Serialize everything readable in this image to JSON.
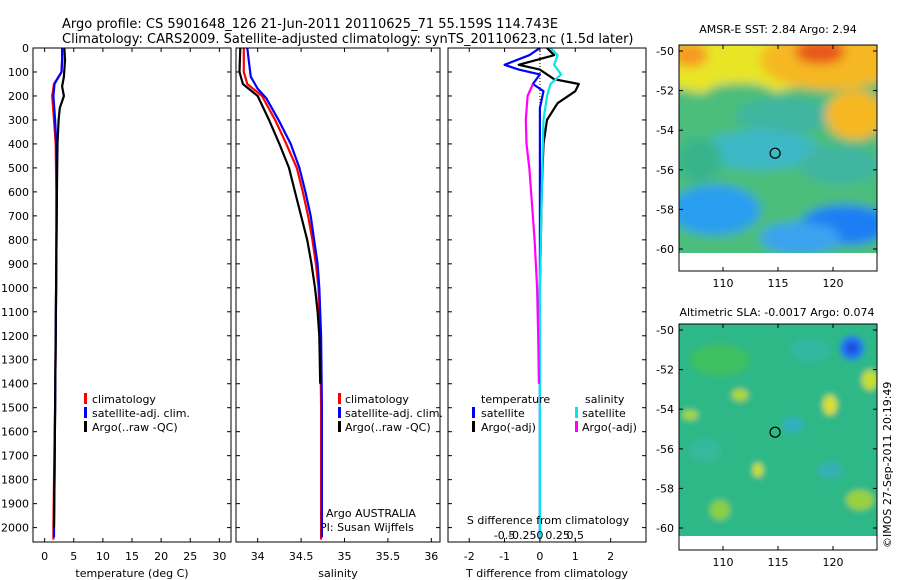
{
  "header": {
    "line1": "Argo profile: CS 5901648_126 21-Jun-2011 20110625_71 55.159S 114.743E",
    "line2": "Climatology: CARS2009. Satellite-adjusted climatology: synTS_20110623.nc (1.5d later)"
  },
  "credit": "©IMOS 27-Sep-2011 20:19:49",
  "colors": {
    "climatology": "#ff0000",
    "satellite": "#0000ff",
    "argo": "#000000",
    "salinity_satellite": "#00e5ee",
    "salinity_argo": "#ff00ff"
  },
  "chart_data": [
    {
      "type": "line",
      "id": "temperature",
      "xlabel": "temperature (deg C)",
      "xlim": [
        -2,
        32
      ],
      "ylim": [
        2060,
        0
      ],
      "xticks": [
        "0",
        "5",
        "10",
        "15",
        "20",
        "25",
        "30"
      ],
      "xtick_values": [
        0,
        5,
        10,
        15,
        20,
        25,
        30
      ],
      "yticks": [
        "0",
        "100",
        "200",
        "300",
        "400",
        "500",
        "600",
        "700",
        "800",
        "900",
        "1000",
        "1100",
        "1200",
        "1300",
        "1400",
        "1500",
        "1600",
        "1700",
        "1800",
        "1900",
        "2000"
      ],
      "ytick_values": [
        0,
        100,
        200,
        300,
        400,
        500,
        600,
        700,
        800,
        900,
        1000,
        1100,
        1200,
        1300,
        1400,
        1500,
        1600,
        1700,
        1800,
        1900,
        2000
      ],
      "legend": {
        "placement": "lower-center",
        "items": [
          "climatology",
          "satellite-adj. clim.",
          "Argo(..raw -QC)"
        ]
      },
      "series": [
        {
          "name": "climatology",
          "color": "#ff0000",
          "points": [
            [
              3.0,
              0
            ],
            [
              3.0,
              50
            ],
            [
              2.9,
              100
            ],
            [
              1.6,
              150
            ],
            [
              1.3,
              200
            ],
            [
              1.6,
              300
            ],
            [
              1.9,
              400
            ],
            [
              2.0,
              600
            ],
            [
              2.0,
              900
            ],
            [
              1.9,
              1200
            ],
            [
              1.8,
              1500
            ],
            [
              1.6,
              1800
            ],
            [
              1.5,
              2000
            ],
            [
              1.5,
              2050
            ]
          ]
        },
        {
          "name": "satellite-adj. clim.",
          "color": "#0000ff",
          "points": [
            [
              3.0,
              0
            ],
            [
              3.0,
              50
            ],
            [
              2.9,
              100
            ],
            [
              1.7,
              150
            ],
            [
              1.5,
              200
            ],
            [
              1.8,
              300
            ],
            [
              2.0,
              400
            ],
            [
              2.1,
              600
            ],
            [
              2.0,
              900
            ],
            [
              1.9,
              1200
            ],
            [
              1.8,
              1500
            ],
            [
              1.7,
              1800
            ],
            [
              1.6,
              2000
            ],
            [
              1.6,
              2040
            ]
          ]
        },
        {
          "name": "Argo(..raw -QC)",
          "color": "#000000",
          "points": [
            [
              3.4,
              0
            ],
            [
              3.5,
              50
            ],
            [
              3.3,
              120
            ],
            [
              3.0,
              160
            ],
            [
              3.3,
              200
            ],
            [
              2.6,
              250
            ],
            [
              2.4,
              300
            ],
            [
              2.2,
              400
            ],
            [
              2.1,
              600
            ],
            [
              2.0,
              900
            ],
            [
              1.9,
              1200
            ],
            [
              1.8,
              1500
            ],
            [
              1.7,
              1800
            ],
            [
              1.6,
              2000
            ]
          ]
        }
      ]
    },
    {
      "type": "line",
      "id": "salinity",
      "xlabel": "salinity",
      "xlim": [
        33.75,
        36.1
      ],
      "ylim": [
        2060,
        0
      ],
      "xticks": [
        "34",
        "34.5",
        "35",
        "35.5",
        "36"
      ],
      "xtick_values": [
        34,
        34.5,
        35,
        35.5,
        36
      ],
      "legend": {
        "placement": "lower-center",
        "items": [
          "climatology",
          "satellite-adj. clim.",
          "Argo(..raw -QC)"
        ]
      },
      "annotation": [
        "Argo AUSTRALIA",
        "PI: Susan Wijffels"
      ],
      "series": [
        {
          "name": "climatology",
          "color": "#ff0000",
          "points": [
            [
              33.84,
              0
            ],
            [
              33.84,
              100
            ],
            [
              33.88,
              150
            ],
            [
              34.05,
              200
            ],
            [
              34.2,
              300
            ],
            [
              34.33,
              400
            ],
            [
              34.45,
              500
            ],
            [
              34.52,
              600
            ],
            [
              34.58,
              700
            ],
            [
              34.63,
              800
            ],
            [
              34.67,
              900
            ],
            [
              34.7,
              1000
            ],
            [
              34.72,
              1200
            ],
            [
              34.73,
              1500
            ],
            [
              34.73,
              1800
            ],
            [
              34.73,
              2000
            ],
            [
              34.73,
              2050
            ]
          ]
        },
        {
          "name": "satellite-adj. clim.",
          "color": "#0000ff",
          "points": [
            [
              33.88,
              0
            ],
            [
              33.9,
              60
            ],
            [
              33.92,
              120
            ],
            [
              34.0,
              170
            ],
            [
              34.1,
              210
            ],
            [
              34.24,
              300
            ],
            [
              34.38,
              400
            ],
            [
              34.48,
              500
            ],
            [
              34.55,
              600
            ],
            [
              34.61,
              700
            ],
            [
              34.65,
              800
            ],
            [
              34.69,
              900
            ],
            [
              34.71,
              1000
            ],
            [
              34.73,
              1200
            ],
            [
              34.74,
              1500
            ],
            [
              34.74,
              1800
            ],
            [
              34.74,
              2000
            ],
            [
              34.74,
              2040
            ]
          ]
        },
        {
          "name": "Argo(..raw -QC)",
          "color": "#000000",
          "points": [
            [
              33.8,
              0
            ],
            [
              33.79,
              100
            ],
            [
              33.83,
              150
            ],
            [
              34.0,
              200
            ],
            [
              34.13,
              300
            ],
            [
              34.25,
              400
            ],
            [
              34.36,
              500
            ],
            [
              34.43,
              600
            ],
            [
              34.5,
              700
            ],
            [
              34.57,
              800
            ],
            [
              34.62,
              900
            ],
            [
              34.66,
              1000
            ],
            [
              34.69,
              1100
            ],
            [
              34.71,
              1200
            ],
            [
              34.72,
              1400
            ]
          ]
        }
      ]
    },
    {
      "type": "line",
      "id": "difference",
      "xlabel": "T difference from climatology",
      "xlabel2": "S difference from climatology",
      "xlim": [
        -2.6,
        3.0
      ],
      "ylim": [
        2060,
        0
      ],
      "xticks": [
        "-2",
        "-1",
        "0",
        "1",
        "2"
      ],
      "xtick_values": [
        -2,
        -1,
        0,
        1,
        2
      ],
      "sticks": [
        "-0.5",
        "-0.25",
        "0",
        "0.25",
        "0.5"
      ],
      "stick_values": [
        -0.5,
        -0.25,
        0,
        0.25,
        0.5
      ],
      "legend": {
        "placement": "lower-center",
        "temperature_header": "temperature",
        "salinity_header": "salinity",
        "items": [
          "satellite",
          "Argo(-adj)",
          "satellite",
          "Argo(-adj)"
        ]
      },
      "series": [
        {
          "name": "satellite",
          "group": "temperature",
          "color": "#0000ff",
          "points": [
            [
              0.0,
              0
            ],
            [
              -0.3,
              30
            ],
            [
              -1.0,
              70
            ],
            [
              -0.6,
              90
            ],
            [
              0.0,
              110
            ],
            [
              -0.2,
              150
            ],
            [
              0.1,
              180
            ],
            [
              0.0,
              250
            ],
            [
              0.0,
              600
            ],
            [
              0.0,
              1000
            ],
            [
              0.0,
              1500
            ],
            [
              0.0,
              2000
            ],
            [
              0.0,
              2040
            ]
          ]
        },
        {
          "name": "Argo(-adj)",
          "group": "temperature",
          "color": "#000000",
          "points": [
            [
              0.2,
              0
            ],
            [
              0.4,
              30
            ],
            [
              -0.6,
              70
            ],
            [
              0.0,
              90
            ],
            [
              0.4,
              130
            ],
            [
              1.1,
              150
            ],
            [
              1.0,
              180
            ],
            [
              0.5,
              230
            ],
            [
              0.2,
              300
            ],
            [
              0.1,
              400
            ],
            [
              0.05,
              600
            ],
            [
              0.0,
              1000
            ],
            [
              0.0,
              1400
            ]
          ]
        },
        {
          "name": "satellite",
          "group": "salinity",
          "color": "#00e5ee",
          "points": [
            [
              0.3,
              0
            ],
            [
              0.5,
              30
            ],
            [
              0.4,
              70
            ],
            [
              0.6,
              110
            ],
            [
              0.3,
              150
            ],
            [
              0.2,
              200
            ],
            [
              0.1,
              300
            ],
            [
              0.05,
              600
            ],
            [
              0.0,
              1000
            ],
            [
              0.0,
              1500
            ],
            [
              0.0,
              2040
            ]
          ]
        },
        {
          "name": "Argo(-adj)",
          "group": "salinity",
          "color": "#ff00ff",
          "points": [
            [
              -0.2,
              150
            ],
            [
              -0.35,
              200
            ],
            [
              -0.4,
              300
            ],
            [
              -0.38,
              400
            ],
            [
              -0.3,
              500
            ],
            [
              -0.25,
              600
            ],
            [
              -0.15,
              800
            ],
            [
              -0.08,
              1000
            ],
            [
              -0.05,
              1200
            ],
            [
              -0.03,
              1400
            ]
          ]
        }
      ]
    },
    {
      "type": "heatmap",
      "id": "sst_map",
      "title": "AMSR-E SST: 2.84  Argo: 2.94",
      "xlim": [
        106,
        124
      ],
      "ylim": [
        -61,
        -49
      ],
      "xticks": [
        "110",
        "115",
        "120"
      ],
      "xtick_values": [
        110,
        115,
        120
      ],
      "yticks": [
        "-50",
        "-52",
        "-54",
        "-56",
        "-58",
        "-60"
      ],
      "ytick_values": [
        -50,
        -52,
        -54,
        -56,
        -58,
        -60
      ],
      "float_position": [
        114.74,
        -55.16
      ]
    },
    {
      "type": "heatmap",
      "id": "sla_map",
      "title": "Altimetric SLA: -0.0017  Argo: 0.074",
      "xlim": [
        106,
        124
      ],
      "ylim": [
        -61,
        -49
      ],
      "xticks": [
        "110",
        "115",
        "120"
      ],
      "xtick_values": [
        110,
        115,
        120
      ],
      "yticks": [
        "-50",
        "-52",
        "-54",
        "-56",
        "-58",
        "-60"
      ],
      "ytick_values": [
        -50,
        -52,
        -54,
        -56,
        -58,
        -60
      ],
      "float_position": [
        114.74,
        -55.16
      ]
    }
  ]
}
